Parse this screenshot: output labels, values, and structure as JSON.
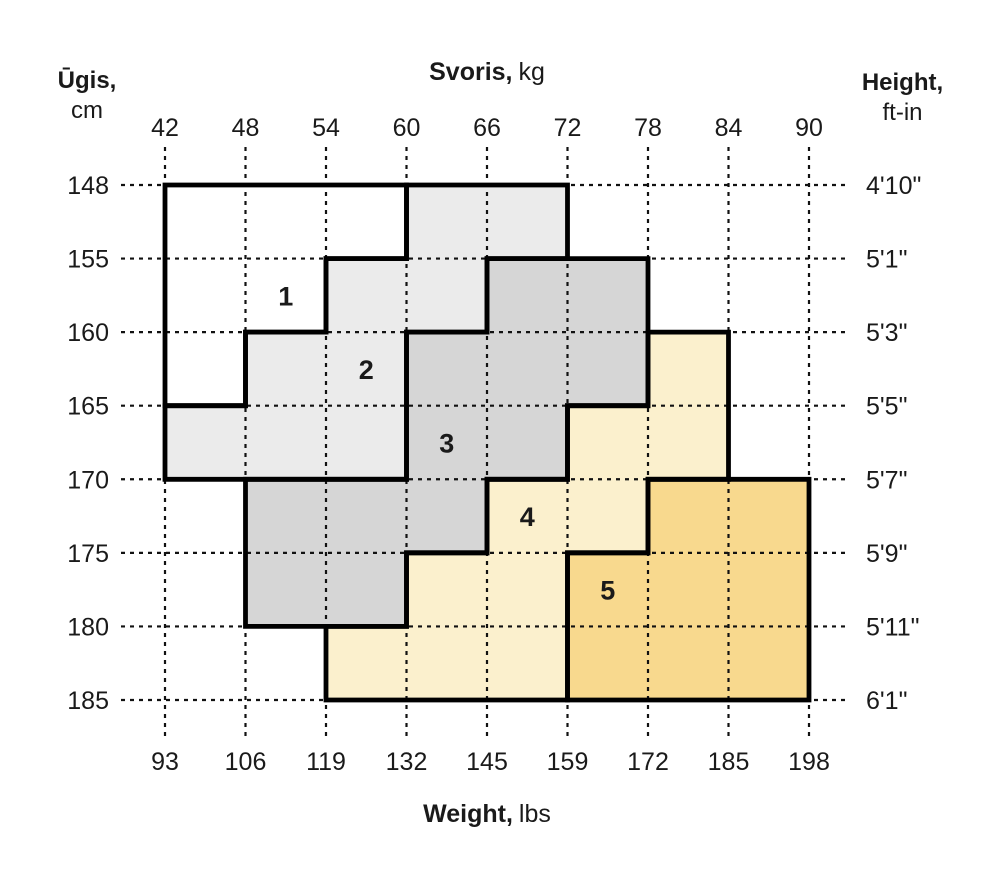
{
  "chart_data": {
    "type": "heatmap",
    "description": "Size chart with numbered size zones (1-5) plotted over a weight x height grid",
    "axes": {
      "top": {
        "title_bold": "Svoris,",
        "title_regular": "kg",
        "ticks": [
          "42",
          "48",
          "54",
          "60",
          "66",
          "72",
          "78",
          "84",
          "90"
        ]
      },
      "bottom": {
        "title_bold": "Weight,",
        "title_regular": "lbs",
        "ticks": [
          "93",
          "106",
          "119",
          "132",
          "145",
          "159",
          "172",
          "185",
          "198"
        ]
      },
      "left": {
        "title_bold": "Ūgis,",
        "title_regular": "cm",
        "ticks": [
          "148",
          "155",
          "160",
          "165",
          "170",
          "175",
          "180",
          "185"
        ]
      },
      "right": {
        "title_bold": "Height,",
        "title_regular": "ft-in",
        "ticks": [
          "4'10\"",
          "5'1\"",
          "5'3\"",
          "5'5\"",
          "5'7\"",
          "5'9\"",
          "5'11\"",
          "6'1\""
        ]
      }
    },
    "zones": [
      {
        "label": "1",
        "fill": "#ffffff",
        "label_cell": {
          "kg": [
            48,
            54
          ],
          "cm": [
            155,
            160
          ]
        },
        "outline_kg_cm": [
          [
            42,
            148
          ],
          [
            60,
            148
          ],
          [
            60,
            155
          ],
          [
            54,
            155
          ],
          [
            54,
            160
          ],
          [
            48,
            160
          ],
          [
            48,
            165
          ],
          [
            42,
            165
          ]
        ]
      },
      {
        "label": "2",
        "fill": "#ebebeb",
        "label_cell": {
          "kg": [
            54,
            60
          ],
          "cm": [
            160,
            165
          ]
        },
        "outline_kg_cm": [
          [
            60,
            148
          ],
          [
            72,
            148
          ],
          [
            72,
            155
          ],
          [
            66,
            155
          ],
          [
            66,
            160
          ],
          [
            60,
            160
          ],
          [
            60,
            170
          ],
          [
            42,
            170
          ],
          [
            42,
            165
          ],
          [
            48,
            165
          ],
          [
            48,
            160
          ],
          [
            54,
            160
          ],
          [
            54,
            155
          ],
          [
            60,
            155
          ]
        ]
      },
      {
        "label": "3",
        "fill": "#d6d6d6",
        "label_cell": {
          "kg": [
            60,
            66
          ],
          "cm": [
            165,
            170
          ]
        },
        "outline_kg_cm": [
          [
            66,
            155
          ],
          [
            78,
            155
          ],
          [
            78,
            165
          ],
          [
            72,
            165
          ],
          [
            72,
            170
          ],
          [
            66,
            170
          ],
          [
            66,
            175
          ],
          [
            60,
            175
          ],
          [
            60,
            180
          ],
          [
            48,
            180
          ],
          [
            48,
            170
          ],
          [
            60,
            170
          ],
          [
            60,
            160
          ],
          [
            66,
            160
          ]
        ]
      },
      {
        "label": "4",
        "fill": "#fbf0cd",
        "label_cell": {
          "kg": [
            66,
            72
          ],
          "cm": [
            170,
            175
          ]
        },
        "outline_kg_cm": [
          [
            78,
            160
          ],
          [
            84,
            160
          ],
          [
            84,
            170
          ],
          [
            78,
            170
          ],
          [
            78,
            175
          ],
          [
            72,
            175
          ],
          [
            72,
            185
          ],
          [
            54,
            185
          ],
          [
            54,
            180
          ],
          [
            60,
            180
          ],
          [
            60,
            175
          ],
          [
            66,
            175
          ],
          [
            66,
            170
          ],
          [
            72,
            170
          ],
          [
            72,
            165
          ],
          [
            78,
            165
          ]
        ]
      },
      {
        "label": "5",
        "fill": "#f8d98e",
        "label_cell": {
          "kg": [
            72,
            78
          ],
          "cm": [
            175,
            180
          ]
        },
        "outline_kg_cm": [
          [
            78,
            170
          ],
          [
            90,
            170
          ],
          [
            90,
            185
          ],
          [
            72,
            185
          ],
          [
            72,
            175
          ],
          [
            78,
            175
          ]
        ]
      }
    ],
    "styles": {
      "border_color": "#000000",
      "border_width": 4.8,
      "grid_color": "#111111",
      "grid_width": 2.2,
      "grid_dash": "4 5",
      "text_color": "#1a1a1a",
      "background": "#ffffff"
    }
  }
}
